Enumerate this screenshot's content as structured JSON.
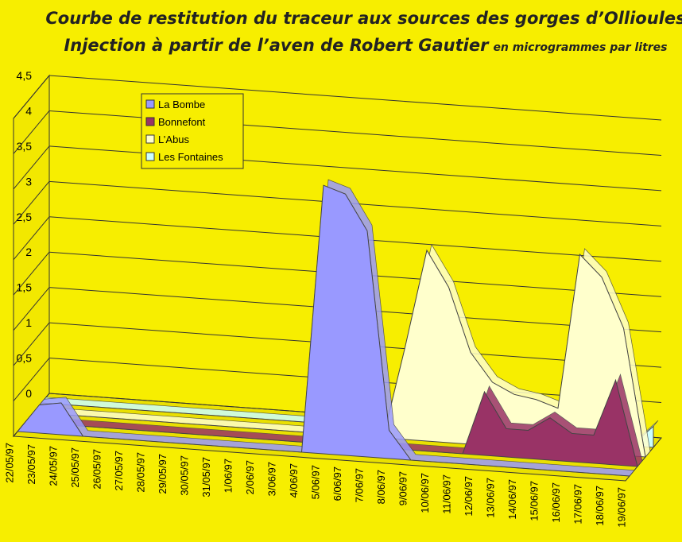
{
  "chart_data": {
    "type": "area3d",
    "title_lines": [
      "Courbe de restitution du traceur aux sources  des gorges d’Ollioules",
      "Injection à partir de l’aven de Robert Gautier"
    ],
    "title_note": "en microgrammes par litres",
    "categories": [
      "22/05/97",
      "23/05/97",
      "24/05/97",
      "25/05/97",
      "26/05/97",
      "27/05/97",
      "28/05/97",
      "29/05/97",
      "30/05/97",
      "31/05/97",
      "1/06/97",
      "2/06/97",
      "3/06/97",
      "4/06/97",
      "5/06/97",
      "6/06/97",
      "7/06/97",
      "8/06/97",
      "9/06/97",
      "10/06/97",
      "11/06/97",
      "12/06/97",
      "13/06/97",
      "14/06/97",
      "15/06/97",
      "16/06/97",
      "17/06/97",
      "18/06/97",
      "19/06/97"
    ],
    "series": [
      {
        "name": "La Bombe",
        "color": "#9999ff",
        "values": [
          0,
          0.4,
          0.45,
          0,
          0,
          0,
          0,
          0,
          0,
          0,
          0,
          0,
          0,
          0,
          3.8,
          3.7,
          3.2,
          0.4,
          0,
          0,
          0,
          0,
          0,
          0,
          0,
          0,
          0,
          0,
          0
        ]
      },
      {
        "name": "Bonnefont",
        "color": "#993366",
        "values": [
          0,
          0,
          0,
          0,
          0,
          0,
          0,
          0,
          0,
          0,
          0,
          0,
          0,
          0,
          0,
          0,
          0,
          0,
          0,
          0,
          0,
          0.9,
          0.4,
          0.4,
          0.6,
          0.4,
          0.4,
          1.2,
          0
        ]
      },
      {
        "name": "L’Abus",
        "color": "#ffffcc",
        "values": [
          0,
          0,
          0,
          0,
          0,
          0,
          0,
          0,
          0,
          0,
          0,
          0,
          0,
          0,
          0,
          0,
          0,
          1.3,
          2.7,
          2.2,
          1.3,
          0.9,
          0.75,
          0.7,
          0.6,
          2.8,
          2.5,
          1.8,
          0
        ]
      },
      {
        "name": "Les Fontaines",
        "color": "#ccffff",
        "values": [
          0,
          0,
          0,
          0,
          0,
          0,
          0,
          0,
          0,
          0,
          0,
          0,
          0,
          0,
          0,
          0,
          0,
          0,
          0,
          0,
          0,
          0,
          0,
          0,
          0,
          0,
          0,
          0,
          0.3
        ]
      }
    ],
    "ylim": [
      0,
      4.5
    ],
    "yticks": [
      0,
      {
        "value": 0.5,
        "label": "0,5"
      },
      1,
      {
        "value": 1.5,
        "label": "1,5"
      },
      2,
      {
        "value": 2.5,
        "label": "2,5"
      },
      3,
      {
        "value": 3.5,
        "label": "3,5"
      },
      4,
      {
        "value": 4.5,
        "label": "4,5"
      }
    ],
    "grid": true
  }
}
